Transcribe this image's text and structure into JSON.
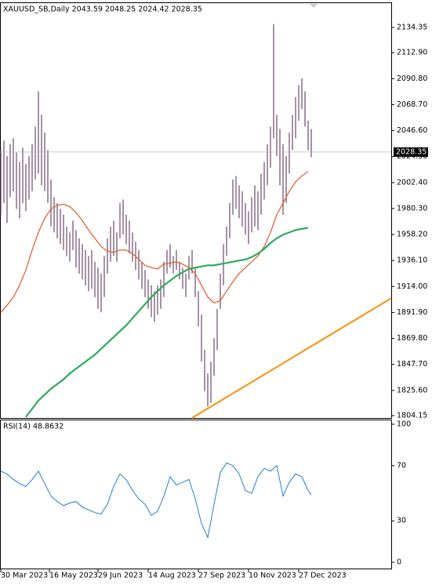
{
  "chart_data": [
    {
      "type": "ohlc",
      "title": "XAUUSD_SB,Daily  2043.59 2048.25 2024.42 2028.35",
      "color": "#6b4a6b",
      "x": [
        0,
        1,
        2,
        3,
        4,
        5,
        6,
        7,
        8,
        9,
        10,
        11,
        12,
        13,
        14,
        15,
        16,
        17,
        18,
        19,
        20,
        21,
        22,
        23,
        24,
        25,
        26,
        27,
        28,
        29,
        30,
        31,
        32,
        33,
        34,
        35,
        36,
        37,
        38,
        39,
        40,
        41,
        42,
        43,
        44,
        45,
        46,
        47,
        48,
        49,
        50,
        51,
        52,
        53,
        54,
        55,
        56,
        57,
        58,
        59,
        60,
        61,
        62,
        63,
        64,
        65,
        66,
        67,
        68,
        69,
        70,
        71,
        72,
        73,
        74,
        75,
        76,
        77,
        78,
        79,
        80,
        81,
        82,
        83,
        84,
        85,
        86,
        87,
        88,
        89,
        90,
        91,
        92,
        93,
        94,
        95,
        96,
        97,
        98,
        99
      ],
      "high": [
        2030,
        2038,
        2025,
        2035,
        2040,
        2028,
        2020,
        2032,
        2018,
        2025,
        2035,
        2050,
        2080,
        2060,
        2045,
        2030,
        2005,
        1990,
        1985,
        1980,
        1975,
        1965,
        1960,
        1970,
        1962,
        1955,
        1950,
        1945,
        1940,
        1945,
        1935,
        1930,
        1925,
        1940,
        1955,
        1965,
        1970,
        1960,
        1985,
        1988,
        1975,
        1970,
        1960,
        1952,
        1945,
        1935,
        1928,
        1920,
        1915,
        1910,
        1915,
        1920,
        1935,
        1945,
        1950,
        1940,
        1945,
        1935,
        1930,
        1925,
        1940,
        1945,
        1930,
        1910,
        1890,
        1860,
        1840,
        1850,
        1870,
        1895,
        1925,
        1950,
        1965,
        1985,
        2005,
        2008,
        2000,
        1995,
        1985,
        1978,
        1990,
        2000,
        1995,
        2010,
        2020,
        2035,
        2050,
        2137,
        2060,
        2048,
        2035,
        2025,
        2045,
        2060,
        2075,
        2085,
        2091,
        2080,
        2055,
        2048
      ],
      "low": [
        1975,
        1985,
        1968,
        1990,
        1995,
        1980,
        1972,
        1985,
        1978,
        1988,
        1995,
        2005,
        2010,
        2000,
        1995,
        1985,
        1965,
        1960,
        1955,
        1950,
        1945,
        1940,
        1935,
        1945,
        1930,
        1925,
        1920,
        1915,
        1910,
        1912,
        1905,
        1895,
        1892,
        1905,
        1925,
        1935,
        1940,
        1935,
        1955,
        1958,
        1950,
        1942,
        1935,
        1928,
        1920,
        1912,
        1905,
        1895,
        1888,
        1884,
        1890,
        1895,
        1905,
        1925,
        1930,
        1925,
        1928,
        1920,
        1912,
        1905,
        1920,
        1925,
        1905,
        1880,
        1850,
        1825,
        1812,
        1815,
        1838,
        1860,
        1895,
        1915,
        1940,
        1955,
        1975,
        1980,
        1972,
        1965,
        1958,
        1950,
        1960,
        1965,
        1962,
        1975,
        1988,
        2000,
        2015,
        2040,
        2025,
        2000,
        1975,
        1985,
        2010,
        2030,
        2040,
        2055,
        2065,
        2050,
        2030,
        2024
      ],
      "lines": [
        {
          "color": "#e2582a",
          "x": [
            0,
            2,
            4,
            6,
            8,
            10,
            12,
            14,
            16,
            18,
            20,
            22,
            24,
            26,
            28,
            30,
            32,
            34,
            36,
            38,
            40,
            42,
            44,
            46,
            48,
            50,
            52,
            54,
            56,
            58,
            60,
            62,
            64,
            66,
            68,
            70,
            72,
            74,
            76,
            78,
            80,
            82,
            84,
            86,
            88,
            90,
            92,
            94,
            96,
            98
          ],
          "values": [
            1892,
            1898,
            1905,
            1915,
            1928,
            1945,
            1960,
            1972,
            1980,
            1983,
            1984,
            1982,
            1977,
            1970,
            1962,
            1955,
            1948,
            1944,
            1943,
            1945,
            1945,
            1942,
            1937,
            1932,
            1930,
            1929,
            1933,
            1934,
            1935,
            1933,
            1930,
            1925,
            1915,
            1905,
            1900,
            1902,
            1910,
            1918,
            1925,
            1930,
            1935,
            1940,
            1948,
            1960,
            1975,
            1985,
            1995,
            2003,
            2008,
            2012
          ]
        },
        {
          "color": "#2eaa5c",
          "x": [
            0,
            2,
            4,
            6,
            8,
            10,
            12,
            14,
            16,
            18,
            20,
            22,
            24,
            26,
            28,
            30,
            32,
            34,
            36,
            38,
            40,
            42,
            44,
            46,
            48,
            50,
            52,
            54,
            56,
            58,
            60,
            62,
            64,
            66,
            68,
            70,
            72,
            74,
            76,
            78,
            80,
            82,
            84,
            86,
            88,
            90,
            92,
            94,
            96,
            98
          ],
          "values": [
            null,
            null,
            null,
            null,
            1803,
            1810,
            1817,
            1822,
            1827,
            1831,
            1835,
            1840,
            1844,
            1848,
            1852,
            1856,
            1861,
            1866,
            1871,
            1876,
            1881,
            1887,
            1893,
            1899,
            1905,
            1910,
            1915,
            1919,
            1923,
            1926,
            1929,
            1930,
            1931,
            1932,
            1932,
            1933,
            1934,
            1935,
            1936,
            1937,
            1939,
            1942,
            1946,
            1951,
            1955,
            1958,
            1960,
            1962,
            1963,
            1964
          ]
        }
      ],
      "trendline": {
        "color": "#f39a1e",
        "x": [
          61,
          124.5
        ],
        "values": [
          1802.2,
          1904
        ]
      },
      "last": 2028.35,
      "xlim": [
        -0.25,
        124.5
      ],
      "ylim": [
        1802.15,
        2155.7
      ],
      "yticks": [
        {
          "value": 2134.35,
          "label": "2134.35"
        },
        {
          "value": 2112.9,
          "label": "2112.90"
        },
        {
          "value": 2090.8,
          "label": "2090.80"
        },
        {
          "value": 2068.7,
          "label": "2068.70"
        },
        {
          "value": 2046.6,
          "label": "2046.60"
        },
        {
          "value": 2024.5,
          "label": "2024.50"
        },
        {
          "value": 2002.4,
          "label": "2002.40"
        },
        {
          "value": 1980.3,
          "label": "1980.30"
        },
        {
          "value": 1958.2,
          "label": "1958.20"
        },
        {
          "value": 1936.1,
          "label": "1936.10"
        },
        {
          "value": 1914,
          "label": "1914.00"
        },
        {
          "value": 1891.9,
          "label": "1891.90"
        },
        {
          "value": 1869.8,
          "label": "1869.80"
        },
        {
          "value": 1847.7,
          "label": "1847.70"
        },
        {
          "value": 1825.6,
          "label": "1825.60"
        },
        {
          "value": 1804.15,
          "label": "1804.15"
        }
      ]
    },
    {
      "type": "line",
      "title": "RSI(14) 48.8632",
      "color": "#1e7fd6",
      "x": [
        0,
        2,
        4,
        6,
        8,
        10,
        12,
        14,
        16,
        18,
        20,
        22,
        24,
        26,
        28,
        30,
        32,
        34,
        36,
        38,
        40,
        42,
        44,
        46,
        48,
        50,
        52,
        54,
        56,
        58,
        60,
        62,
        64,
        66,
        68,
        70,
        72,
        74,
        76,
        78,
        80,
        82,
        84,
        86,
        88,
        90,
        92,
        94,
        96,
        98,
        99
      ],
      "values": [
        66,
        64,
        60,
        57,
        55,
        60,
        66,
        57,
        48,
        44,
        41,
        43,
        44,
        40,
        38,
        36,
        35,
        42,
        55,
        64,
        60,
        52,
        46,
        42,
        34,
        37,
        48,
        62,
        56,
        58,
        60,
        46,
        28,
        18,
        42,
        65,
        72,
        70,
        64,
        52,
        50,
        62,
        68,
        66,
        70,
        48,
        58,
        64,
        62,
        52,
        48.8632
      ],
      "xlim": [
        -0.25,
        124.5
      ],
      "ylim": [
        -4.5,
        103.4
      ],
      "yticks": [
        100,
        70,
        30,
        0
      ],
      "xticks": [
        {
          "value": 0,
          "label": "30 Mar 2023"
        },
        {
          "value": 15.5,
          "label": "16 May 2023"
        },
        {
          "value": 31,
          "label": "29 Jun 2023"
        },
        {
          "value": 47,
          "label": "14 Aug 2023"
        },
        {
          "value": 63,
          "label": "27 Sep 2023"
        },
        {
          "value": 79,
          "label": "10 Nov 2023"
        },
        {
          "value": 95,
          "label": "27 Dec 2023"
        }
      ]
    }
  ]
}
